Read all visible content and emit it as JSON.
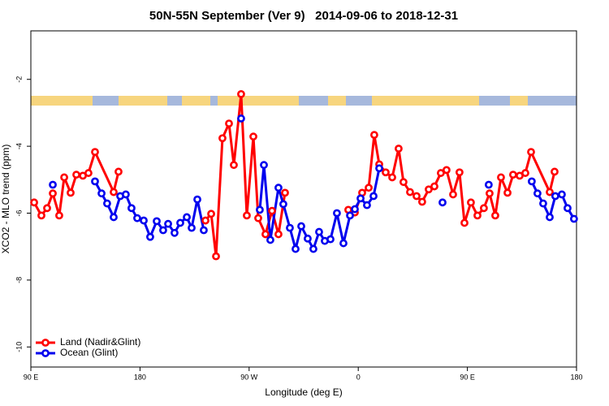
{
  "chart_data": {
    "type": "line",
    "title": "50N-55N September (Ver 9)   2014-09-06 to 2018-12-31",
    "x_label": "Longitude (deg E)",
    "y_label": "XCO2 - MLO trend (ppm)",
    "xlim": [
      90,
      540
    ],
    "xticks": [
      {
        "value": 90,
        "label": "90 E"
      },
      180,
      {
        "value": 270,
        "label": "90 W"
      },
      {
        "value": 360,
        "label": "0"
      },
      {
        "value": 450,
        "label": "90 E"
      },
      {
        "value": 540,
        "label": "180"
      }
    ],
    "ylim": [
      -10.6,
      -0.55
    ],
    "yticks": [
      -10,
      -8,
      -6,
      -4,
      -2
    ],
    "legend": "bottom-left",
    "series": [
      {
        "name": "Land (Nadir&Glint)",
        "color": "#ff0000",
        "x": [
          92.7,
          98.7,
          103.4,
          108.1,
          113.4,
          117.5,
          122.8,
          127.5,
          132.9,
          137.5,
          142.9,
          158.3,
          162.3,
          null,
          234.0,
          238.7,
          242.7,
          248.0,
          253.4,
          257.4,
          263.4,
          268.1,
          273.5,
          277.5,
          283.5,
          288.9,
          294.2,
          299.6,
          null,
          351.8,
          357.2,
          363.2,
          368.6,
          373.2,
          377.3,
          382.6,
          388.0,
          393.3,
          397.3,
          402.7,
          408.1,
          412.7,
          418.1,
          422.8,
          428.1,
          432.8,
          438.2,
          443.5,
          447.6,
          452.9,
          458.3,
          463.6,
          468.3,
          473.0,
          477.7,
          483.1,
          487.7,
          493.1,
          497.8,
          502.5,
          517.9,
          521.9
        ],
        "values": [
          -5.68,
          -6.07,
          -5.85,
          -5.41,
          -6.07,
          -4.93,
          -5.39,
          -4.85,
          -4.88,
          -4.8,
          -4.17,
          -5.37,
          -4.76,
          null,
          -6.22,
          -6.02,
          -7.29,
          -3.76,
          -3.32,
          -4.56,
          -2.44,
          -6.07,
          -3.71,
          -6.15,
          -6.63,
          -5.93,
          -6.63,
          -5.39,
          null,
          -5.9,
          -5.98,
          -5.39,
          -5.24,
          -3.66,
          -4.54,
          -4.78,
          -4.93,
          -4.07,
          -5.07,
          -5.37,
          -5.49,
          -5.66,
          -5.29,
          -5.2,
          -4.8,
          -4.71,
          -5.44,
          -4.78,
          -6.29,
          -5.68,
          -6.07,
          -5.85,
          -5.41,
          -6.07,
          -4.93,
          -5.39,
          -4.85,
          -4.88,
          -4.8,
          -4.17,
          -5.37,
          -4.76
        ]
      },
      {
        "name": "Ocean (Glint)",
        "color": "#0000ee",
        "x": [
          108.1,
          null,
          142.9,
          148.3,
          152.9,
          158.3,
          163.7,
          168.3,
          173.0,
          177.7,
          183.1,
          188.4,
          193.8,
          199.1,
          203.2,
          208.5,
          213.2,
          218.6,
          222.6,
          227.3,
          232.6,
          null,
          263.4,
          null,
          278.8,
          282.2,
          287.5,
          294.2,
          298.2,
          303.6,
          308.3,
          313.0,
          318.3,
          323.0,
          327.7,
          332.4,
          337.1,
          342.4,
          347.8,
          353.2,
          357.2,
          361.9,
          367.2,
          372.6,
          377.3,
          null,
          429.5,
          null,
          467.6,
          null,
          503.1,
          507.8,
          512.5,
          517.9,
          522.5,
          527.9,
          532.6,
          537.9
        ],
        "values": [
          -5.15,
          null,
          -5.05,
          -5.41,
          -5.71,
          -6.12,
          -5.49,
          -5.44,
          -5.85,
          -6.15,
          -6.22,
          -6.71,
          -6.24,
          -6.51,
          -6.32,
          -6.59,
          -6.29,
          -6.12,
          -6.44,
          -5.59,
          -6.51,
          null,
          -3.17,
          null,
          -5.9,
          -4.56,
          -6.8,
          -5.24,
          -5.73,
          -6.44,
          -7.07,
          -6.39,
          -6.76,
          -7.07,
          -6.56,
          -6.83,
          -6.78,
          -6.0,
          -6.9,
          -6.07,
          -5.88,
          -5.56,
          -5.76,
          -5.49,
          -4.66,
          null,
          -5.68,
          null,
          -5.15,
          null,
          -5.05,
          -5.41,
          -5.71,
          -6.12,
          -5.49,
          -5.44,
          -5.85,
          -6.17
        ]
      }
    ]
  }
}
